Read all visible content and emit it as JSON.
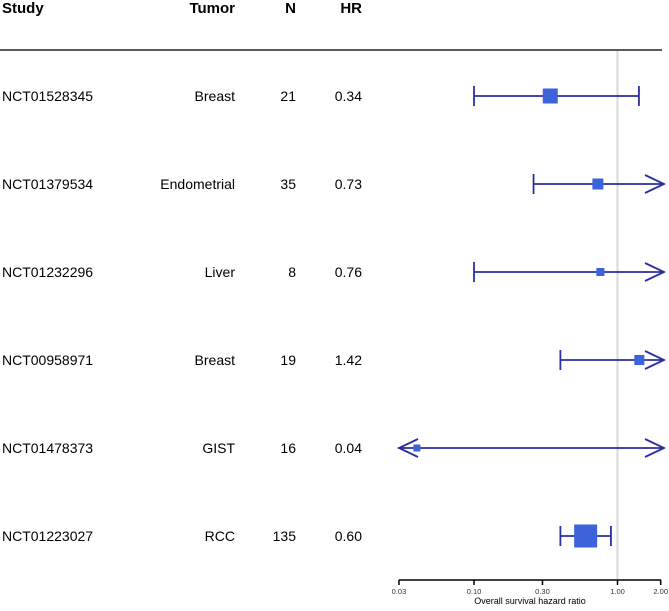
{
  "chart_data": {
    "type": "forest",
    "title": "",
    "xlabel": "Overall survival hazard ratio",
    "scale": "log",
    "x_range": [
      0.03,
      2.0
    ],
    "ref_line": 1.0,
    "x_ticks": [
      0.03,
      0.1,
      0.3,
      1.0,
      2.0
    ],
    "x_tick_labels": [
      "0.03",
      "0.10",
      "0.30",
      "1.00",
      "2.00"
    ],
    "columns": {
      "study": "Study",
      "tumor": "Tumor",
      "n": "N",
      "hr": "HR"
    },
    "rows": [
      {
        "study": "NCT01528345",
        "tumor": "Breast",
        "n": "21",
        "hr": "0.34",
        "est": 0.34,
        "lo": 0.1,
        "hi": 1.41,
        "lo_arrow": false,
        "hi_arrow": false,
        "size": 15
      },
      {
        "study": "NCT01379534",
        "tumor": "Endometrial",
        "n": "35",
        "hr": "0.73",
        "est": 0.73,
        "lo": 0.26,
        "hi": 2.0,
        "lo_arrow": false,
        "hi_arrow": true,
        "size": 11
      },
      {
        "study": "NCT01232296",
        "tumor": "Liver",
        "n": "8",
        "hr": "0.76",
        "est": 0.76,
        "lo": 0.1,
        "hi": 2.0,
        "lo_arrow": false,
        "hi_arrow": true,
        "size": 8
      },
      {
        "study": "NCT00958971",
        "tumor": "Breast",
        "n": "19",
        "hr": "1.42",
        "est": 1.42,
        "lo": 0.4,
        "hi": 2.0,
        "lo_arrow": false,
        "hi_arrow": true,
        "size": 10
      },
      {
        "study": "NCT01478373",
        "tumor": "GIST",
        "n": "16",
        "hr": "0.04",
        "est": 0.04,
        "lo": 0.03,
        "hi": 2.0,
        "lo_arrow": true,
        "hi_arrow": true,
        "size": 7
      },
      {
        "study": "NCT01223027",
        "tumor": "RCC",
        "n": "135",
        "hr": "0.60",
        "est": 0.6,
        "lo": 0.4,
        "hi": 0.9,
        "lo_arrow": false,
        "hi_arrow": false,
        "size": 23
      }
    ],
    "colors": {
      "marker": "#3D63DB",
      "ci_line": "#2A2E9E",
      "ref_line": "#D9D9D9",
      "top_rule": "#5A5A5A",
      "axis": "#000000",
      "tick_label": "#333333"
    }
  }
}
